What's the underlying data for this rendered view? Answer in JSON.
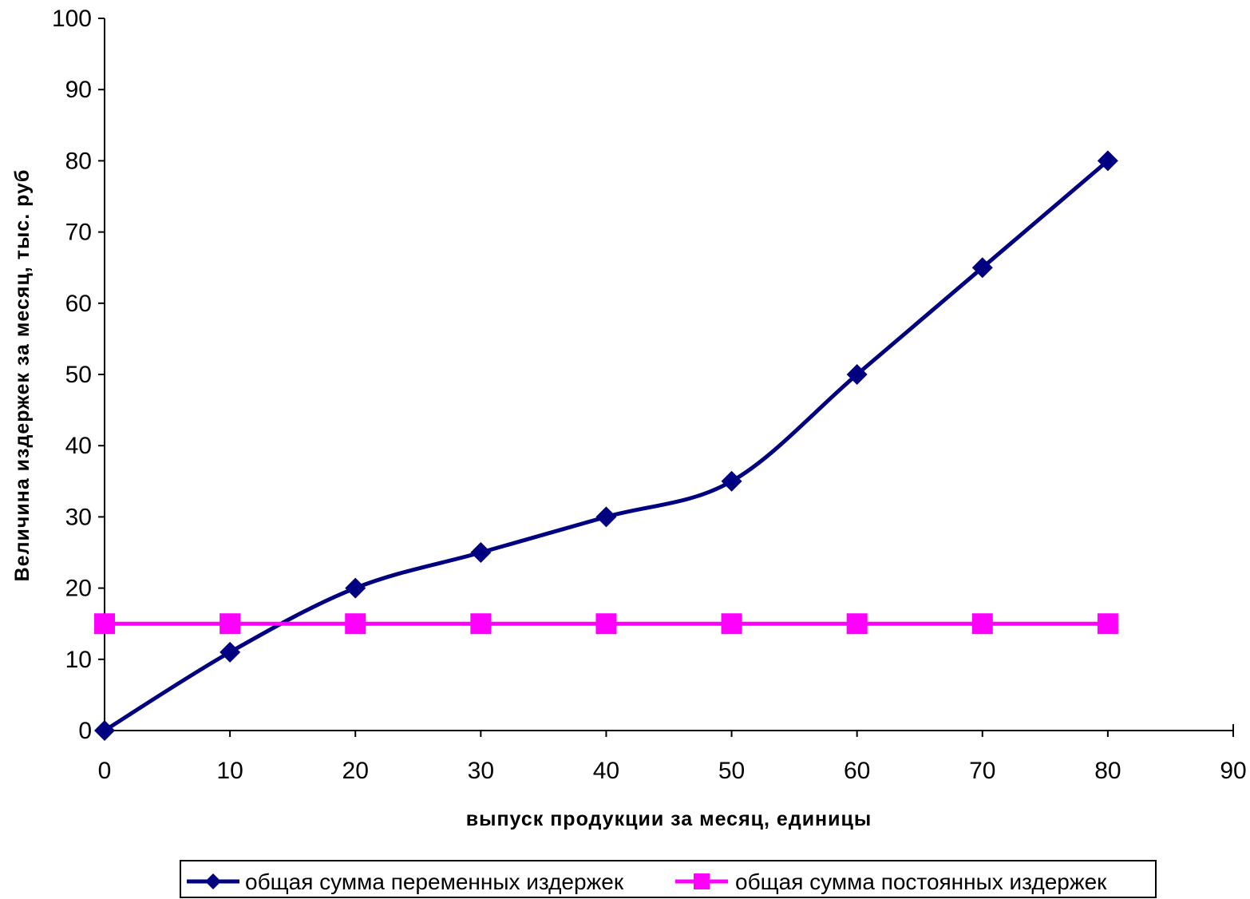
{
  "chart_data": {
    "type": "line",
    "title": "",
    "xlabel": "выпуск продукции за месяц, единицы",
    "ylabel": "Величина издержек за месяц, тыс. руб",
    "xlim": [
      0,
      90
    ],
    "ylim": [
      0,
      100
    ],
    "xticks": [
      0,
      10,
      20,
      30,
      40,
      50,
      60,
      70,
      80,
      90
    ],
    "yticks": [
      0,
      10,
      20,
      30,
      40,
      50,
      60,
      70,
      80,
      90,
      100
    ],
    "grid": false,
    "legend_position": "bottom",
    "series": [
      {
        "name": "общая сумма переменных издержек",
        "color": "#000080",
        "marker": "diamond",
        "smooth": true,
        "x": [
          0,
          10,
          20,
          30,
          40,
          50,
          60,
          70,
          80
        ],
        "y": [
          0,
          11,
          20,
          25,
          30,
          35,
          50,
          65,
          80
        ]
      },
      {
        "name": "общая сумма постоянных издержек",
        "color": "#FF00FF",
        "marker": "square",
        "smooth": false,
        "x": [
          0,
          10,
          20,
          30,
          40,
          50,
          60,
          70,
          80
        ],
        "y": [
          15,
          15,
          15,
          15,
          15,
          15,
          15,
          15,
          15
        ]
      }
    ]
  }
}
